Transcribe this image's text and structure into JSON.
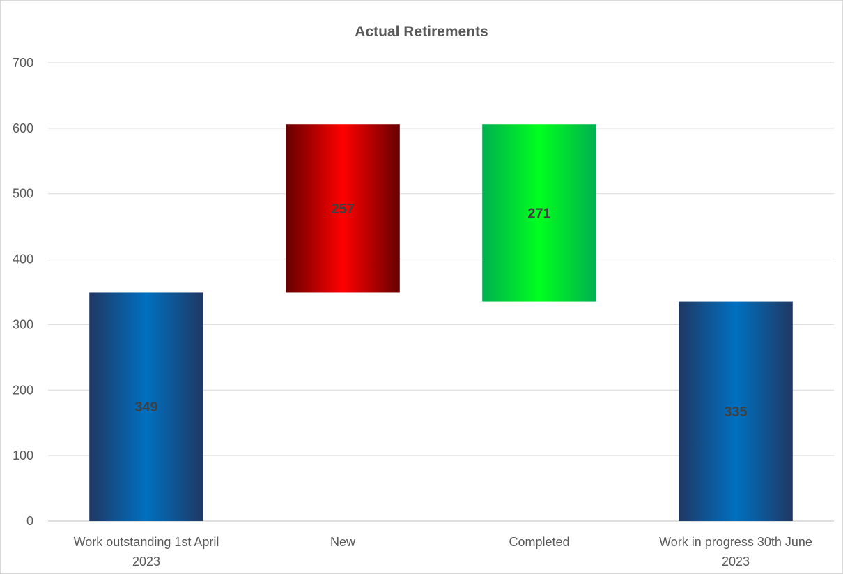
{
  "chart_data": {
    "type": "bar",
    "subtype": "waterfall",
    "title": "Actual Retirements",
    "xlabel": "",
    "ylabel": "",
    "ylim": [
      0,
      700
    ],
    "yticks": [
      0,
      100,
      200,
      300,
      400,
      500,
      600,
      700
    ],
    "grid": true,
    "legend": "none",
    "categories": [
      "Work outstanding 1st April 2023",
      "New",
      "Completed",
      "Work in progress 30th June 2023"
    ],
    "bars": [
      {
        "category": "Work outstanding 1st April 2023",
        "base": 0,
        "top": 349,
        "value": 349,
        "label": "349",
        "kind": "total",
        "color": "#0070c0",
        "edge_color": "#1f3864"
      },
      {
        "category": "New",
        "base": 349,
        "top": 606,
        "value": 257,
        "label": "257",
        "kind": "increase",
        "color": "#ff0000",
        "edge_color": "#660000"
      },
      {
        "category": "Completed",
        "base": 335,
        "top": 606,
        "value": 271,
        "label": "271",
        "kind": "decrease",
        "color": "#00ff1e",
        "edge_color": "#00b050"
      },
      {
        "category": "Work in progress 30th June 2023",
        "base": 0,
        "top": 335,
        "value": 335,
        "label": "335",
        "kind": "total",
        "color": "#0070c0",
        "edge_color": "#1f3864"
      }
    ]
  }
}
